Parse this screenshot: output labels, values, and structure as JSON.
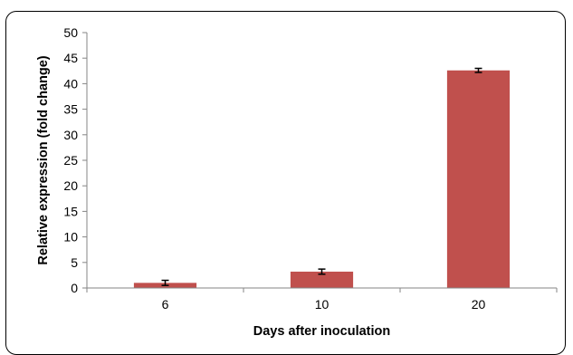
{
  "chart_data": {
    "type": "bar",
    "title": "",
    "xlabel": "Days after inoculation",
    "ylabel": "Relative expression (fold change)",
    "categories": [
      "6",
      "10",
      "20"
    ],
    "values": [
      1.0,
      3.2,
      42.6
    ],
    "error": [
      0.5,
      0.5,
      0.4
    ],
    "ylim": [
      0,
      50
    ],
    "yticks": [
      0,
      5,
      10,
      15,
      20,
      25,
      30,
      35,
      40,
      45,
      50
    ],
    "grid": false,
    "legend": "none",
    "bar_color": "#c0504d"
  }
}
